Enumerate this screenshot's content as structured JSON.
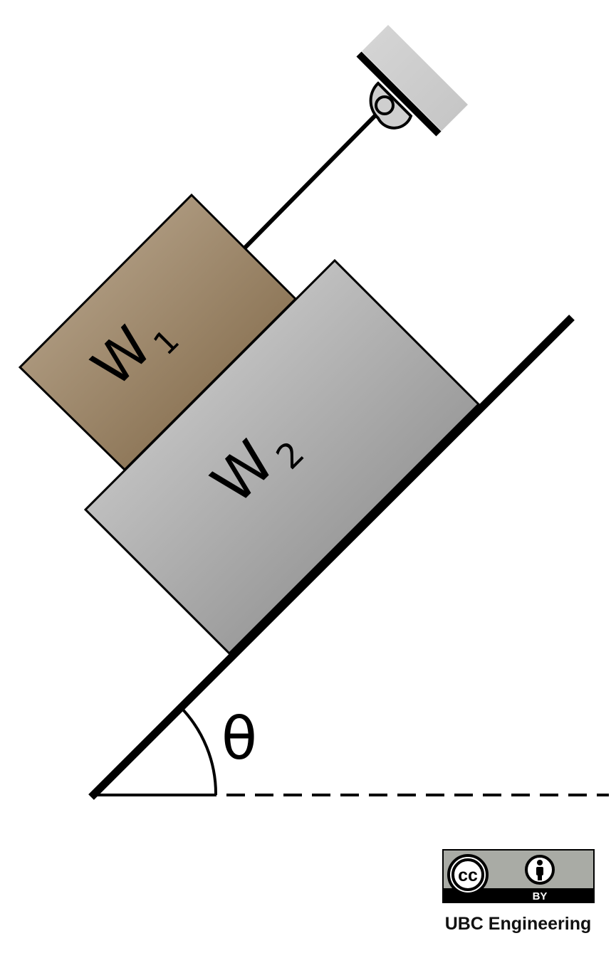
{
  "blocks": {
    "w1": {
      "letter": "W",
      "subscript": "1"
    },
    "w2": {
      "letter": "W",
      "subscript": "2"
    }
  },
  "angle": {
    "symbol": "θ"
  },
  "license": {
    "cc": "cc",
    "by": "BY"
  },
  "credit": "UBC Engineering",
  "colors": {
    "w1_light": "#bba88e",
    "w1_dark": "#7f6744",
    "w2_light": "#d7d7d7",
    "w2_dark": "#8a8a8a",
    "wall": "#cfcfcf",
    "badge_gray": "#a9aba5"
  }
}
